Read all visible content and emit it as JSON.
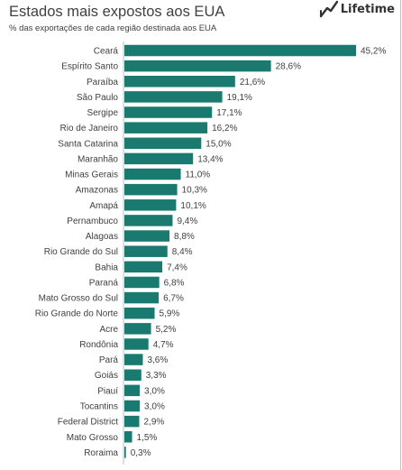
{
  "header": {
    "title": "Estados mais expostos aos EUA",
    "subtitle": "% das exportações de cada região destinada aos EUA",
    "brand": "Lifetime"
  },
  "colors": {
    "bar": "#1a7a70",
    "axis": "#bfbfbf",
    "text": "#404040"
  },
  "chart_data": {
    "type": "bar",
    "orientation": "horizontal",
    "title": "Estados mais expostos aos EUA",
    "subtitle": "% das exportações de cada região destinada aos EUA",
    "categories": [
      "Ceará",
      "Espírito Santo",
      "Paraíba",
      "São Paulo",
      "Sergipe",
      "Rio de Janeiro",
      "Santa Catarina",
      "Maranhão",
      "Minas Gerais",
      "Amazonas",
      "Amapá",
      "Pernambuco",
      "Alagoas",
      "Rio Grande do Sul",
      "Bahia",
      "Paraná",
      "Mato Grosso do Sul",
      "Rio Grande do Norte",
      "Acre",
      "Rondônia",
      "Pará",
      "Goiás",
      "Piauí",
      "Tocantins",
      "Federal District",
      "Mato Grosso",
      "Roraima"
    ],
    "values": [
      45.2,
      28.6,
      21.6,
      19.1,
      17.1,
      16.2,
      15.0,
      13.4,
      11.0,
      10.3,
      10.1,
      9.4,
      8.8,
      8.4,
      7.4,
      6.8,
      6.7,
      5.9,
      5.2,
      4.7,
      3.6,
      3.3,
      3.0,
      3.0,
      2.9,
      1.5,
      0.3
    ],
    "value_labels": [
      "45,2%",
      "28,6%",
      "21,6%",
      "19,1%",
      "17,1%",
      "16,2%",
      "15,0%",
      "13,4%",
      "11,0%",
      "10,3%",
      "10,1%",
      "9,4%",
      "8,8%",
      "8,4%",
      "7,4%",
      "6,8%",
      "6,7%",
      "5,9%",
      "5,2%",
      "4,7%",
      "3,6%",
      "3,3%",
      "3,0%",
      "3,0%",
      "2,9%",
      "1,5%",
      "0,3%"
    ],
    "xlim": [
      0,
      45.2
    ],
    "grid": false,
    "legend": "none"
  }
}
